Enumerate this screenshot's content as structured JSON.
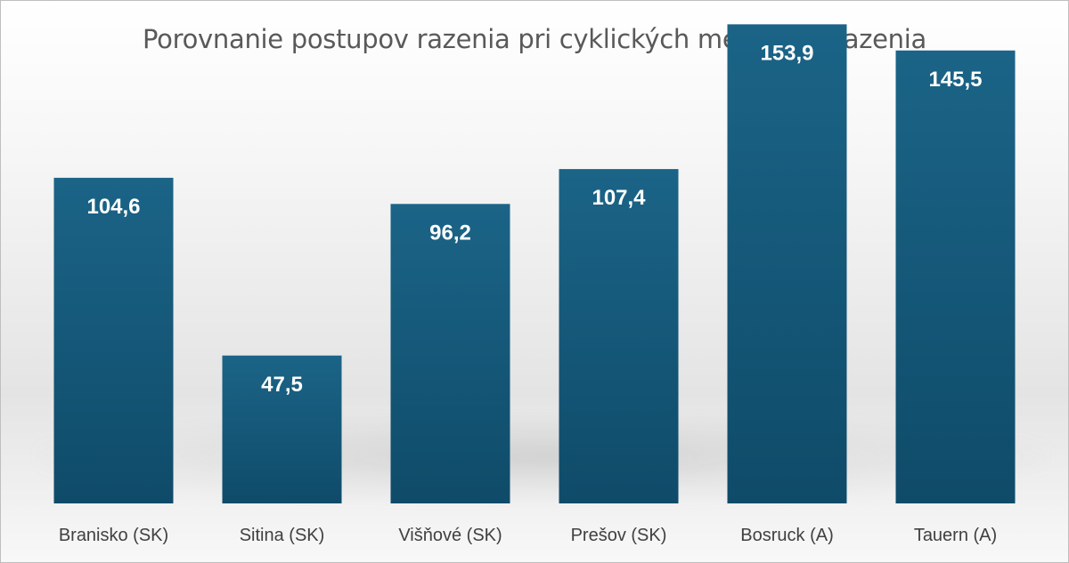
{
  "chart_data": {
    "type": "bar",
    "title": "Porovnanie postupov razenia pri cyklických metódach razenia",
    "xlabel": "",
    "ylabel": "",
    "categories": [
      "Branisko (SK)",
      "Sitina (SK)",
      "Višňové (SK)",
      "Prešov (SK)",
      "Bosruck (A)",
      "Tauern (A)"
    ],
    "values": [
      104.6,
      47.5,
      96.2,
      107.4,
      153.9,
      145.5
    ],
    "value_labels": [
      "104,6",
      "47,5",
      "96,2",
      "107,4",
      "153,9",
      "145,5"
    ],
    "ylim": [
      0,
      160
    ],
    "grid": false,
    "legend": "none",
    "colors": {
      "bar_top": "#1b6487",
      "bar_bottom": "#0f4b69",
      "title": "#595959",
      "axis_text": "#404040"
    }
  }
}
